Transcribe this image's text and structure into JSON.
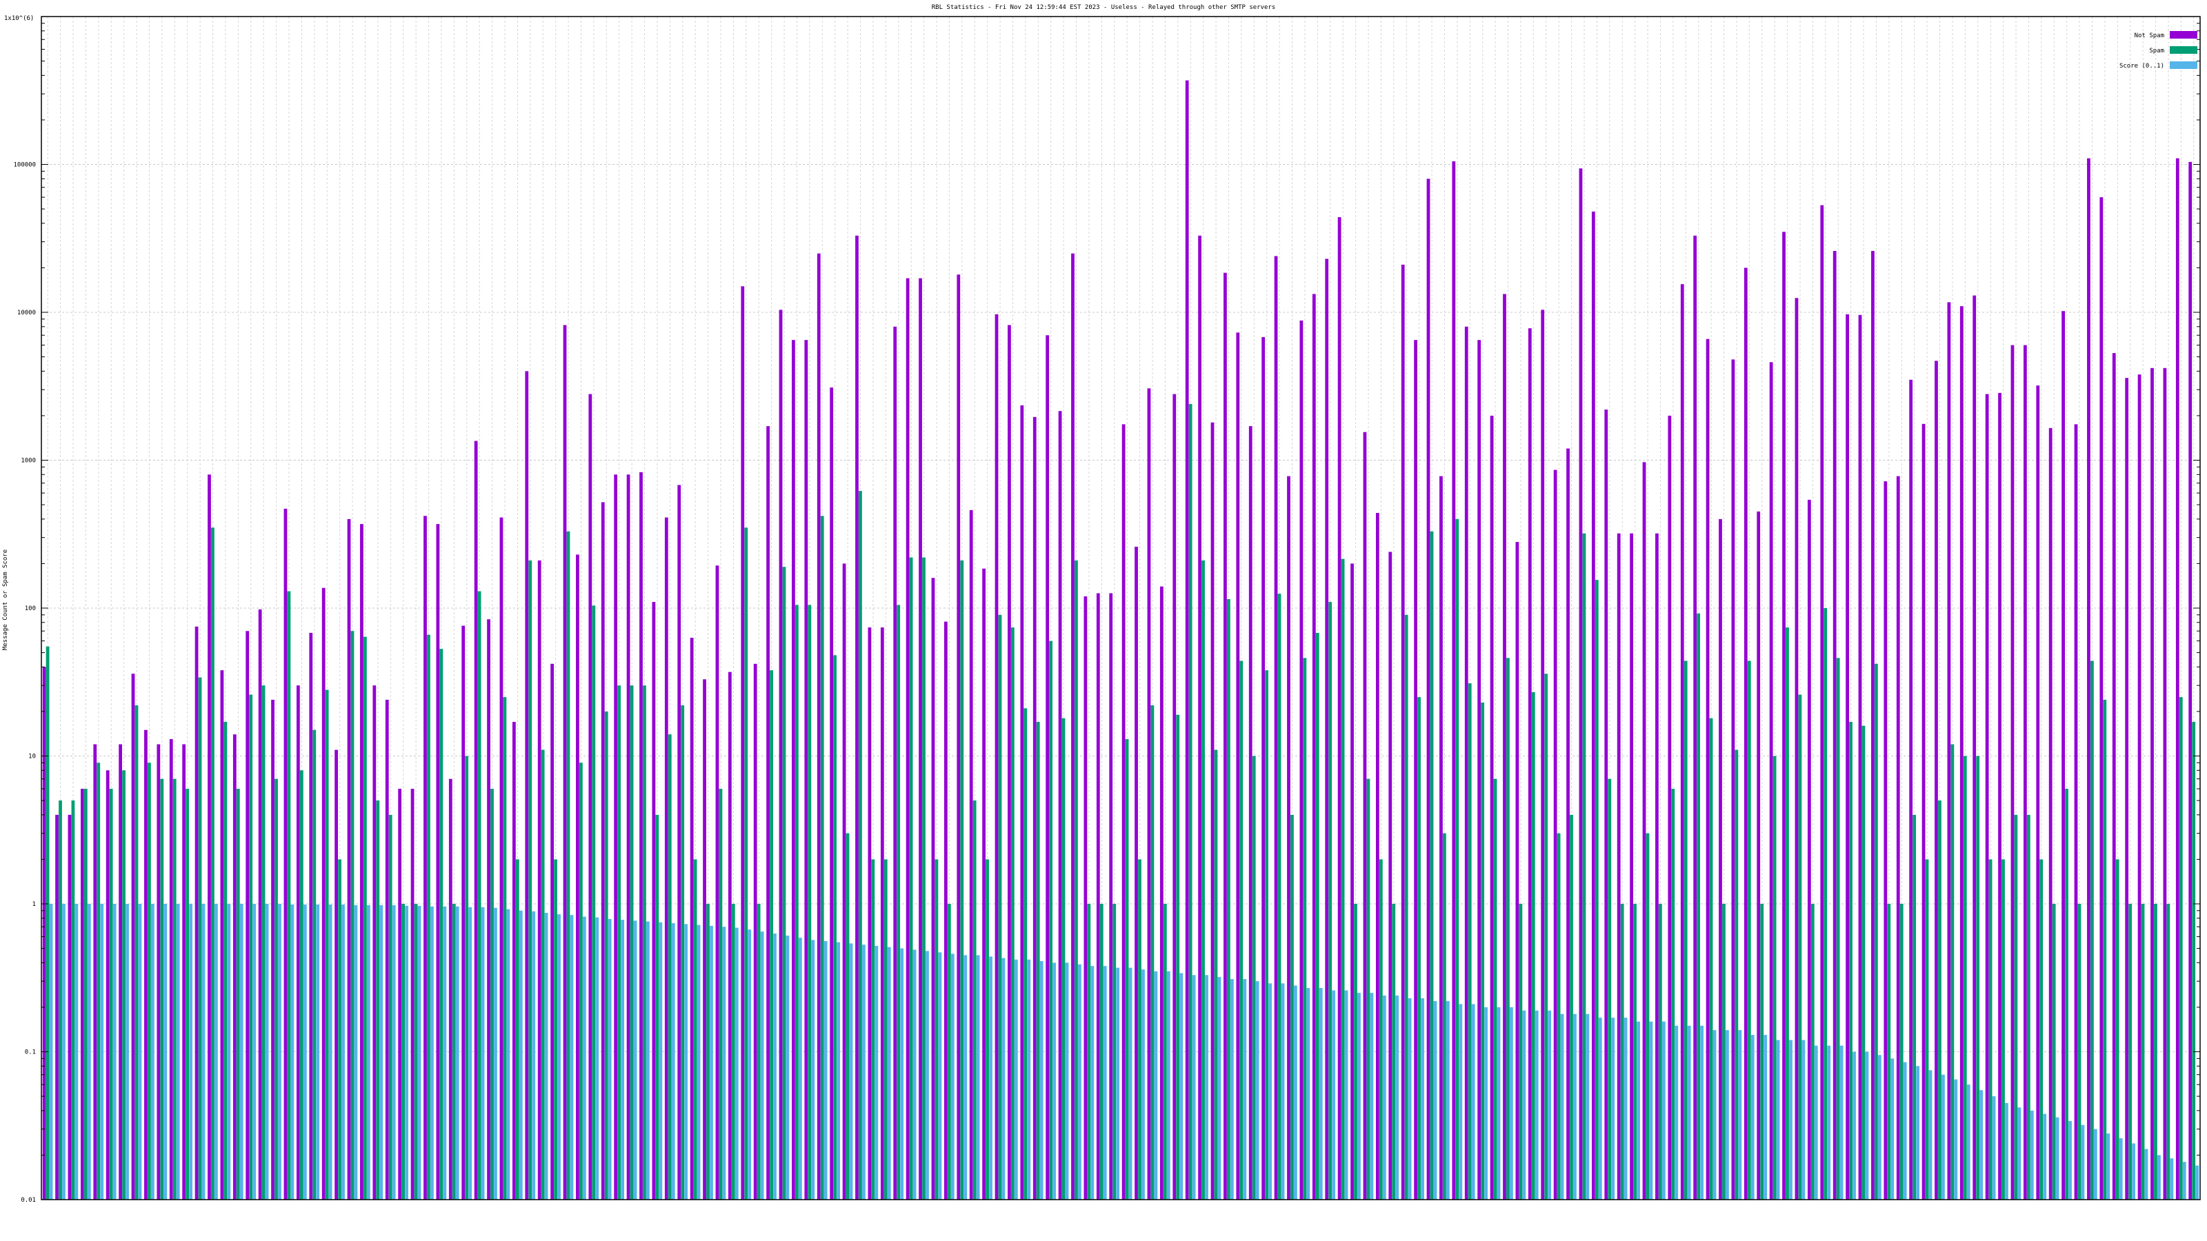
{
  "chart_data": {
    "type": "bar",
    "title": "RBL Statistics - Fri Nov 24 12:59:44 EST 2023 - Useless - Relayed through other SMTP servers",
    "ylabel": "Message Count or Spam Score",
    "ymax_label": "1x10^(6)",
    "yscale": "log",
    "ylim": [
      0.01,
      1000000
    ],
    "yticks": [
      {
        "value": 0.01,
        "label": "0.01"
      },
      {
        "value": 0.1,
        "label": "0.1"
      },
      {
        "value": 1,
        "label": "1"
      },
      {
        "value": 10,
        "label": "10"
      },
      {
        "value": 100,
        "label": "100"
      },
      {
        "value": 1000,
        "label": "1000"
      },
      {
        "value": 10000,
        "label": "10000"
      },
      {
        "value": 100000,
        "label": "100000"
      }
    ],
    "grid": true,
    "legend": "top-right",
    "series": [
      {
        "name": "Not Spam",
        "color": "#9400d3",
        "values": [
          40,
          4,
          4,
          6,
          12,
          8,
          12,
          36,
          15,
          12,
          13,
          12,
          75,
          800,
          38,
          14,
          70,
          98,
          24,
          470,
          30,
          68,
          137,
          11,
          400,
          370,
          30,
          24,
          6,
          6,
          420,
          370,
          7,
          76,
          1350,
          84,
          410,
          17,
          4000,
          210,
          42,
          8200,
          230,
          2800,
          520,
          800,
          800,
          830,
          110,
          410,
          680,
          63,
          33,
          194,
          37,
          15000,
          42,
          1700,
          10400,
          6500,
          6500,
          25000,
          3100,
          200,
          33000,
          74,
          74,
          8000,
          17000,
          17000,
          160,
          81,
          18000,
          460,
          185,
          9700,
          8200,
          2350,
          1960,
          7000,
          2150,
          25000,
          120,
          126,
          126,
          1750,
          260,
          3060,
          140,
          2800,
          370000,
          33000,
          1800,
          18500,
          7300,
          1700,
          6800,
          24000,
          780,
          8800,
          13300,
          23000,
          44000,
          200,
          1550,
          440,
          240,
          21000,
          6500,
          80000,
          780,
          105000,
          8000,
          6500,
          2000,
          13300,
          280,
          7800,
          10400,
          860,
          1200,
          94000,
          48000,
          2200,
          320,
          320,
          970,
          320,
          2000,
          15500,
          33000,
          6600,
          400,
          4800,
          20000,
          450,
          4600,
          35000,
          12500,
          540,
          53000,
          26000,
          9700,
          9600,
          26000,
          720,
          780,
          3500,
          1760,
          4700,
          11700,
          11000,
          13000,
          2800,
          2850,
          6000,
          6000,
          3200,
          1650,
          10200,
          1750,
          110000,
          60000,
          5300,
          3600,
          3800,
          4200,
          4200,
          110000,
          104000
        ]
      },
      {
        "name": "Spam",
        "color": "#009e73",
        "values": [
          55,
          5,
          5,
          6,
          9,
          6,
          8,
          22,
          9,
          7,
          7,
          6,
          34,
          350,
          17,
          6,
          26,
          30,
          7,
          130,
          8,
          15,
          28,
          2,
          70,
          64,
          5,
          4,
          1,
          1,
          66,
          53,
          1,
          10,
          130,
          6,
          25,
          2,
          210,
          11,
          2,
          330,
          9,
          104,
          20,
          30,
          30,
          30,
          4,
          14,
          22,
          2,
          1,
          6,
          1,
          350,
          1,
          38,
          190,
          105,
          105,
          420,
          48,
          3,
          620,
          2,
          2,
          105,
          220,
          220,
          2,
          1,
          210,
          5,
          2,
          90,
          74,
          21,
          17,
          60,
          18,
          210,
          1,
          1,
          1,
          13,
          2,
          22,
          1,
          19,
          2400,
          210,
          11,
          115,
          44,
          10,
          38,
          125,
          4,
          46,
          68,
          110,
          215,
          1,
          7,
          2,
          1,
          90,
          25,
          330,
          3,
          400,
          31,
          23,
          7,
          46,
          1,
          27,
          36,
          3,
          4,
          320,
          155,
          7,
          1,
          1,
          3,
          1,
          6,
          44,
          92,
          18,
          1,
          11,
          44,
          1,
          10,
          74,
          26,
          1,
          100,
          46,
          17,
          16,
          42,
          1,
          1,
          4,
          2,
          5,
          12,
          10,
          10,
          2,
          2,
          4,
          4,
          2,
          1,
          6,
          1,
          44,
          24,
          2,
          1,
          1,
          1,
          1,
          25,
          17
        ]
      },
      {
        "name": "Score (0..1)",
        "color": "#56b4e9",
        "values": [
          1,
          1,
          1,
          1,
          1,
          1,
          1,
          1,
          1,
          1,
          1,
          1,
          1,
          1,
          1,
          1,
          1,
          1,
          1,
          0.99,
          0.99,
          0.99,
          0.99,
          0.99,
          0.98,
          0.98,
          0.98,
          0.98,
          0.97,
          0.97,
          0.96,
          0.96,
          0.96,
          0.95,
          0.95,
          0.94,
          0.92,
          0.9,
          0.89,
          0.87,
          0.85,
          0.84,
          0.82,
          0.81,
          0.79,
          0.78,
          0.77,
          0.76,
          0.75,
          0.74,
          0.73,
          0.72,
          0.71,
          0.7,
          0.69,
          0.67,
          0.65,
          0.63,
          0.61,
          0.59,
          0.57,
          0.56,
          0.55,
          0.54,
          0.53,
          0.52,
          0.51,
          0.5,
          0.49,
          0.48,
          0.47,
          0.46,
          0.45,
          0.45,
          0.44,
          0.43,
          0.42,
          0.42,
          0.41,
          0.4,
          0.4,
          0.39,
          0.38,
          0.38,
          0.37,
          0.37,
          0.36,
          0.35,
          0.35,
          0.34,
          0.33,
          0.33,
          0.32,
          0.31,
          0.31,
          0.3,
          0.29,
          0.29,
          0.28,
          0.27,
          0.27,
          0.26,
          0.26,
          0.25,
          0.25,
          0.24,
          0.24,
          0.23,
          0.23,
          0.22,
          0.22,
          0.21,
          0.21,
          0.2,
          0.2,
          0.2,
          0.19,
          0.19,
          0.19,
          0.18,
          0.18,
          0.18,
          0.17,
          0.17,
          0.17,
          0.16,
          0.16,
          0.16,
          0.15,
          0.15,
          0.15,
          0.14,
          0.14,
          0.14,
          0.13,
          0.13,
          0.12,
          0.12,
          0.12,
          0.11,
          0.11,
          0.11,
          0.1,
          0.1,
          0.095,
          0.09,
          0.085,
          0.08,
          0.075,
          0.07,
          0.065,
          0.06,
          0.055,
          0.05,
          0.045,
          0.042,
          0.04,
          0.038,
          0.036,
          0.034,
          0.032,
          0.03,
          0.028,
          0.026,
          0.024,
          0.022,
          0.02,
          0.019,
          0.018,
          0.017,
          0.016
        ]
      }
    ]
  }
}
